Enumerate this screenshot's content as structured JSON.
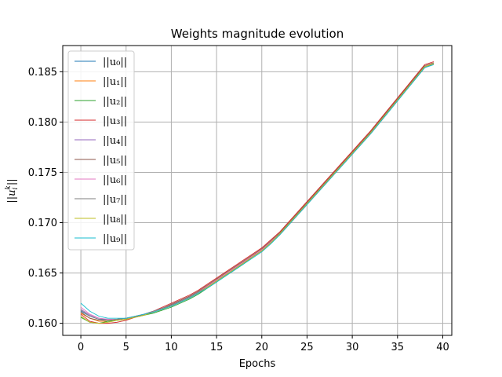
{
  "chart_data": {
    "type": "line",
    "title": "Weights magnitude evolution",
    "xlabel": "Epochs",
    "ylabel": "||u_i^k||",
    "xlim": [
      -2,
      41
    ],
    "ylim": [
      0.1588,
      0.1876
    ],
    "xticks": [
      0,
      5,
      10,
      15,
      20,
      25,
      30,
      35,
      40
    ],
    "yticks": [
      0.16,
      0.165,
      0.17,
      0.175,
      0.18,
      0.185
    ],
    "ytick_labels": [
      "0.160",
      "0.165",
      "0.170",
      "0.175",
      "0.180",
      "0.185"
    ],
    "grid": true,
    "legend_position": "upper-left",
    "x": [
      0,
      1,
      2,
      3,
      4,
      5,
      6,
      7,
      8,
      9,
      10,
      11,
      12,
      13,
      14,
      15,
      16,
      17,
      18,
      19,
      20,
      21,
      22,
      23,
      24,
      25,
      26,
      27,
      28,
      29,
      30,
      31,
      32,
      33,
      34,
      35,
      36,
      37,
      38,
      39
    ],
    "series": [
      {
        "name": "||u₀||",
        "color": "#1f77b4",
        "values": [
          0.1612,
          0.1607,
          0.1604,
          0.1604,
          0.1604,
          0.1605,
          0.1607,
          0.1609,
          0.1612,
          0.1615,
          0.1618,
          0.1622,
          0.1626,
          0.1631,
          0.1637,
          0.1643,
          0.1649,
          0.1655,
          0.1661,
          0.1667,
          0.1673,
          0.1681,
          0.1689,
          0.1699,
          0.1709,
          0.1719,
          0.1729,
          0.1739,
          0.1749,
          0.1759,
          0.1769,
          0.1779,
          0.1789,
          0.18,
          0.1811,
          0.1822,
          0.1833,
          0.1844,
          0.1855,
          0.1858
        ]
      },
      {
        "name": "||u₁||",
        "color": "#ff7f0e",
        "values": [
          0.161,
          0.1605,
          0.1602,
          0.1602,
          0.1603,
          0.1604,
          0.1606,
          0.1608,
          0.1611,
          0.1614,
          0.1618,
          0.1622,
          0.1626,
          0.1631,
          0.1637,
          0.1643,
          0.1649,
          0.1655,
          0.1661,
          0.1667,
          0.1673,
          0.1681,
          0.1689,
          0.1699,
          0.1709,
          0.1719,
          0.1729,
          0.1739,
          0.1749,
          0.1759,
          0.1769,
          0.1779,
          0.1789,
          0.18,
          0.1811,
          0.1822,
          0.1833,
          0.1844,
          0.1855,
          0.1858
        ]
      },
      {
        "name": "||u₂||",
        "color": "#2ca02c",
        "values": [
          0.1606,
          0.1601,
          0.16,
          0.1602,
          0.1603,
          0.1604,
          0.1606,
          0.1608,
          0.161,
          0.1613,
          0.1616,
          0.162,
          0.1624,
          0.1629,
          0.1635,
          0.1641,
          0.1647,
          0.1653,
          0.1659,
          0.1666,
          0.1672,
          0.168,
          0.1689,
          0.1699,
          0.1709,
          0.1719,
          0.1729,
          0.1739,
          0.1749,
          0.1759,
          0.1769,
          0.1779,
          0.1789,
          0.18,
          0.1811,
          0.1822,
          0.1833,
          0.1844,
          0.1855,
          0.1858
        ]
      },
      {
        "name": "||u₃||",
        "color": "#d62728",
        "values": [
          0.1609,
          0.1602,
          0.16,
          0.16,
          0.1601,
          0.1603,
          0.1606,
          0.1609,
          0.1612,
          0.1616,
          0.162,
          0.1624,
          0.1628,
          0.1633,
          0.1639,
          0.1645,
          0.1651,
          0.1657,
          0.1663,
          0.1669,
          0.1675,
          0.1683,
          0.1691,
          0.1701,
          0.1711,
          0.1721,
          0.1731,
          0.1741,
          0.1751,
          0.1761,
          0.1771,
          0.1781,
          0.1791,
          0.1802,
          0.1813,
          0.1824,
          0.1835,
          0.1846,
          0.1857,
          0.186
        ]
      },
      {
        "name": "||u₄||",
        "color": "#9467bd",
        "values": [
          0.1614,
          0.1608,
          0.1605,
          0.1604,
          0.1604,
          0.1605,
          0.1607,
          0.1609,
          0.1612,
          0.1615,
          0.1618,
          0.1622,
          0.1626,
          0.1631,
          0.1636,
          0.1642,
          0.1648,
          0.1654,
          0.166,
          0.1666,
          0.1672,
          0.168,
          0.1688,
          0.1698,
          0.1708,
          0.1718,
          0.1728,
          0.1738,
          0.1748,
          0.1758,
          0.1768,
          0.1778,
          0.1788,
          0.1799,
          0.181,
          0.1821,
          0.1832,
          0.1843,
          0.1854,
          0.1858
        ]
      },
      {
        "name": "||u₅||",
        "color": "#8c564b",
        "values": [
          0.1611,
          0.1605,
          0.1603,
          0.1603,
          0.1604,
          0.1605,
          0.1607,
          0.1609,
          0.1612,
          0.1615,
          0.1619,
          0.1623,
          0.1627,
          0.1632,
          0.1638,
          0.1644,
          0.165,
          0.1656,
          0.1662,
          0.1668,
          0.1674,
          0.1682,
          0.169,
          0.17,
          0.171,
          0.172,
          0.173,
          0.174,
          0.175,
          0.176,
          0.177,
          0.178,
          0.179,
          0.1801,
          0.1812,
          0.1823,
          0.1834,
          0.1845,
          0.1856,
          0.1859
        ]
      },
      {
        "name": "||u₆||",
        "color": "#e377c2",
        "values": [
          0.1616,
          0.1609,
          0.1605,
          0.1604,
          0.1604,
          0.1605,
          0.1607,
          0.1609,
          0.1612,
          0.1615,
          0.1618,
          0.1622,
          0.1626,
          0.1631,
          0.1637,
          0.1643,
          0.1649,
          0.1655,
          0.1661,
          0.1667,
          0.1673,
          0.1681,
          0.1689,
          0.1699,
          0.1709,
          0.1719,
          0.1729,
          0.1739,
          0.1749,
          0.1759,
          0.1769,
          0.1779,
          0.1789,
          0.18,
          0.1811,
          0.1822,
          0.1833,
          0.1844,
          0.1855,
          0.1858
        ]
      },
      {
        "name": "||u₇||",
        "color": "#7f7f7f",
        "values": [
          0.1613,
          0.1607,
          0.1604,
          0.1603,
          0.1604,
          0.1605,
          0.1607,
          0.1609,
          0.1612,
          0.1615,
          0.1618,
          0.1622,
          0.1626,
          0.1631,
          0.1636,
          0.1642,
          0.1648,
          0.1654,
          0.166,
          0.1666,
          0.1672,
          0.168,
          0.1688,
          0.1698,
          0.1708,
          0.1718,
          0.1728,
          0.1738,
          0.1748,
          0.1758,
          0.1768,
          0.1778,
          0.1788,
          0.1799,
          0.181,
          0.1821,
          0.1832,
          0.1843,
          0.1854,
          0.1858
        ]
      },
      {
        "name": "||u₈||",
        "color": "#bcbd22",
        "values": [
          0.1607,
          0.1601,
          0.16,
          0.1601,
          0.1603,
          0.1604,
          0.1606,
          0.1608,
          0.1611,
          0.1614,
          0.1617,
          0.1621,
          0.1625,
          0.163,
          0.1636,
          0.1642,
          0.1648,
          0.1654,
          0.166,
          0.1666,
          0.1672,
          0.168,
          0.1689,
          0.1699,
          0.1709,
          0.1719,
          0.1729,
          0.1739,
          0.1749,
          0.1759,
          0.1769,
          0.1779,
          0.1789,
          0.18,
          0.1811,
          0.1822,
          0.1833,
          0.1844,
          0.1855,
          0.1858
        ]
      },
      {
        "name": "||u₉||",
        "color": "#17becf",
        "values": [
          0.162,
          0.1612,
          0.1607,
          0.1605,
          0.1605,
          0.1605,
          0.1607,
          0.1609,
          0.1611,
          0.1614,
          0.1617,
          0.1621,
          0.1625,
          0.163,
          0.1635,
          0.1641,
          0.1647,
          0.1653,
          0.1659,
          0.1665,
          0.1671,
          0.1679,
          0.1688,
          0.1698,
          0.1708,
          0.1718,
          0.1728,
          0.1738,
          0.1748,
          0.1758,
          0.1768,
          0.1778,
          0.1788,
          0.1799,
          0.181,
          0.1821,
          0.1832,
          0.1843,
          0.1854,
          0.1857
        ]
      }
    ]
  }
}
